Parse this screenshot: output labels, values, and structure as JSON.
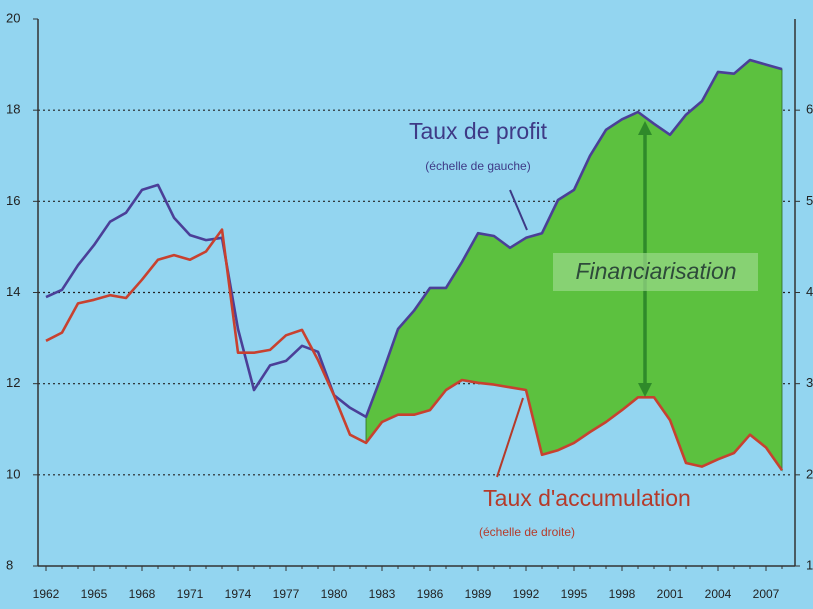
{
  "chart_data": {
    "type": "line",
    "x": [
      1962,
      1963,
      1964,
      1965,
      1966,
      1967,
      1968,
      1969,
      1970,
      1971,
      1972,
      1973,
      1974,
      1975,
      1976,
      1977,
      1978,
      1979,
      1980,
      1981,
      1982,
      1983,
      1984,
      1985,
      1986,
      1987,
      1988,
      1989,
      1990,
      1991,
      1992,
      1993,
      1994,
      1995,
      1996,
      1997,
      1998,
      1999,
      2000,
      2001,
      2002,
      2003,
      2004,
      2005,
      2006,
      2007,
      2008
    ],
    "series": [
      {
        "name": "Taux de profit",
        "color": "#4b3f98",
        "values": [
          13.9,
          14.06,
          14.6,
          15.04,
          15.55,
          15.75,
          16.25,
          16.36,
          15.64,
          15.26,
          15.15,
          15.2,
          13.2,
          11.86,
          12.4,
          12.5,
          12.83,
          12.7,
          11.75,
          11.47,
          11.27,
          12.2,
          13.2,
          13.6,
          14.1,
          14.1,
          14.67,
          15.3,
          15.24,
          14.98,
          15.2,
          15.3,
          16.03,
          16.25,
          17.0,
          17.57,
          17.8,
          17.96,
          17.7,
          17.46,
          17.9,
          18.2,
          18.84,
          18.8,
          19.1,
          19.0,
          18.9
        ]
      },
      {
        "name": "Taux d'accumulation",
        "color": "#c8412f",
        "axis": "y2",
        "values": [
          3.47,
          3.56,
          3.88,
          3.92,
          3.97,
          3.94,
          4.14,
          4.36,
          4.41,
          4.36,
          4.45,
          4.69,
          3.34,
          3.34,
          3.37,
          3.53,
          3.59,
          3.26,
          2.87,
          2.44,
          2.35,
          2.58,
          2.66,
          2.66,
          2.71,
          2.93,
          3.04,
          3.01,
          2.99,
          2.96,
          2.93,
          2.22,
          2.27,
          2.35,
          2.47,
          2.58,
          2.71,
          2.85,
          2.85,
          2.6,
          2.13,
          2.09,
          2.17,
          2.24,
          2.44,
          2.3,
          2.05
        ]
      }
    ],
    "xlim": [
      1961.5,
      2008.5
    ],
    "xticks": [
      1962,
      1965,
      1968,
      1971,
      1974,
      1977,
      1980,
      1983,
      1986,
      1989,
      1992,
      1995,
      1998,
      2001,
      2004,
      2007
    ],
    "ylim": [
      8,
      20
    ],
    "yticks": [
      8,
      10,
      12,
      14,
      16,
      18,
      20
    ],
    "y2lim": [
      1,
      7
    ],
    "y2ticks": [
      1,
      2,
      3,
      4,
      5,
      6
    ],
    "grid": true,
    "fill_color": "#5cc13f",
    "fill_from_x": 1982,
    "annotations": [
      "Taux de profit",
      "(échelle de gauche)",
      "Financiarisation",
      "Taux d'accumulation",
      "(échelle de droite)"
    ]
  }
}
